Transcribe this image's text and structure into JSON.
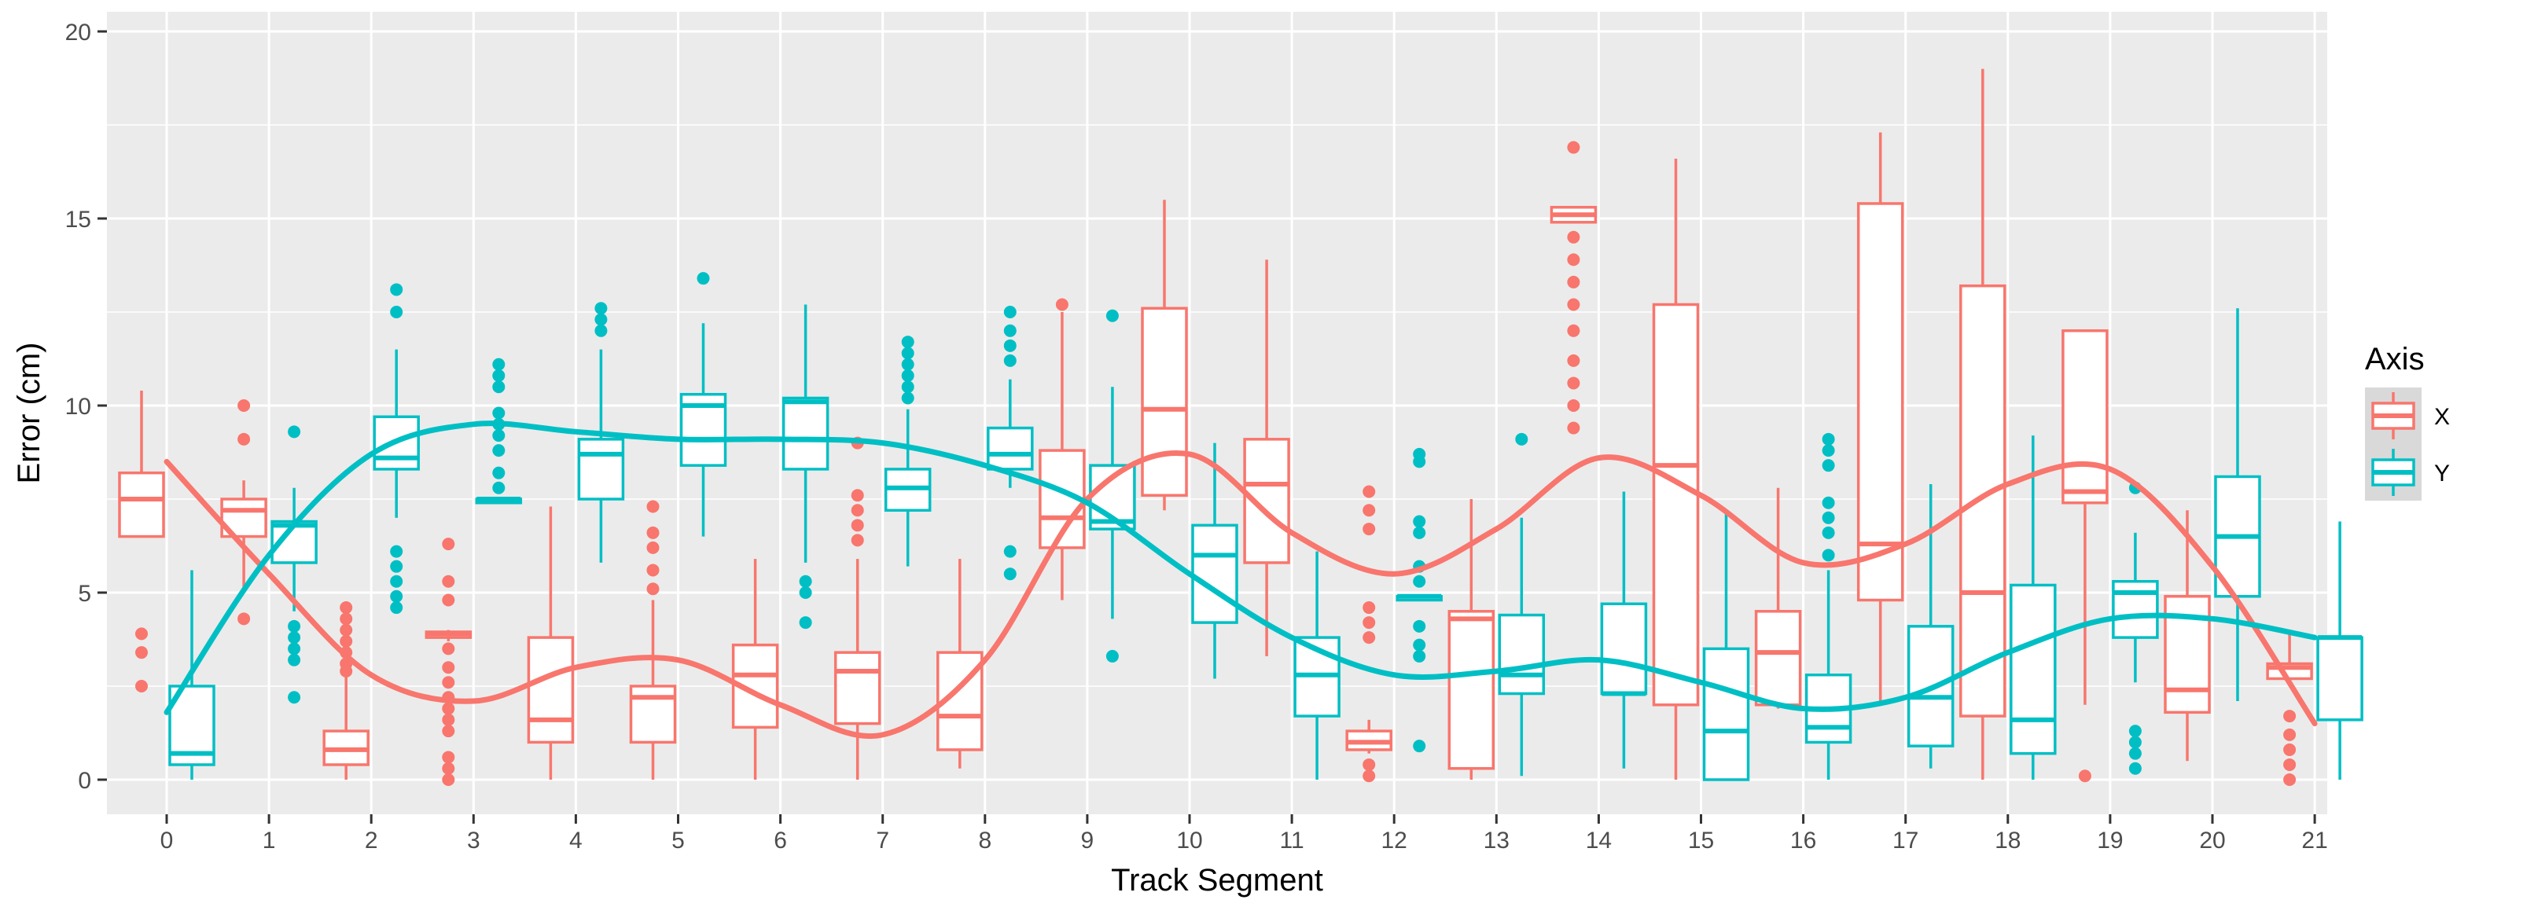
{
  "chart_data": {
    "type": "boxplot",
    "xlabel": "Track Segment",
    "ylabel": "Error (cm)",
    "ylim": [
      -1,
      20
    ],
    "yticks": [
      0,
      5,
      10,
      15,
      20
    ],
    "categories": [
      "0",
      "1",
      "2",
      "3",
      "4",
      "5",
      "6",
      "7",
      "8",
      "9",
      "10",
      "11",
      "12",
      "13",
      "14",
      "15",
      "16",
      "17",
      "18",
      "19",
      "20",
      "21"
    ],
    "grid": true,
    "legend": {
      "title": "Axis",
      "position": "right",
      "entries": [
        "X",
        "Y"
      ]
    },
    "series": [
      {
        "name": "X",
        "color": "#F8766D",
        "boxes": [
          {
            "x": 0,
            "min": 6.5,
            "q1": 6.5,
            "median": 7.5,
            "q3": 8.2,
            "max": 10.4,
            "outliers": [
              3.9,
              3.4,
              2.5
            ]
          },
          {
            "x": 1,
            "min": 5.0,
            "q1": 6.5,
            "median": 7.2,
            "q3": 7.5,
            "max": 8.0,
            "outliers": [
              10.0,
              9.1,
              4.3
            ]
          },
          {
            "x": 2,
            "min": 0.0,
            "q1": 0.4,
            "median": 0.8,
            "q3": 1.3,
            "max": 2.8,
            "outliers": [
              4.6,
              4.3,
              4.0,
              3.7,
              3.4,
              3.1,
              2.9
            ]
          },
          {
            "x": 3,
            "min": 3.7,
            "q1": 3.8,
            "median": 3.9,
            "q3": 3.95,
            "max": 4.0,
            "outliers": [
              6.3,
              5.3,
              4.8,
              3.5,
              3.0,
              2.6,
              2.2,
              1.9,
              1.6,
              1.3,
              0.6,
              0.3,
              0.0
            ]
          },
          {
            "x": 4,
            "min": 0.0,
            "q1": 1.0,
            "median": 1.6,
            "q3": 3.8,
            "max": 7.3,
            "outliers": []
          },
          {
            "x": 5,
            "min": 0.0,
            "q1": 1.0,
            "median": 2.2,
            "q3": 2.5,
            "max": 4.8,
            "outliers": [
              7.3,
              6.6,
              6.2,
              5.6,
              5.1
            ]
          },
          {
            "x": 6,
            "min": 0.0,
            "q1": 1.4,
            "median": 2.8,
            "q3": 3.6,
            "max": 5.9,
            "outliers": []
          },
          {
            "x": 7,
            "min": 0.0,
            "q1": 1.5,
            "median": 2.9,
            "q3": 3.4,
            "max": 5.9,
            "outliers": [
              9.0,
              7.6,
              7.2,
              6.8,
              6.4
            ]
          },
          {
            "x": 8,
            "min": 0.3,
            "q1": 0.8,
            "median": 1.7,
            "q3": 3.4,
            "max": 5.9,
            "outliers": []
          },
          {
            "x": 9,
            "min": 4.8,
            "q1": 6.2,
            "median": 7.0,
            "q3": 8.8,
            "max": 12.5,
            "outliers": [
              12.7
            ]
          },
          {
            "x": 10,
            "min": 7.2,
            "q1": 7.6,
            "median": 9.9,
            "q3": 12.6,
            "max": 15.5,
            "outliers": []
          },
          {
            "x": 11,
            "min": 3.3,
            "q1": 5.8,
            "median": 7.9,
            "q3": 9.1,
            "max": 13.9,
            "outliers": []
          },
          {
            "x": 12,
            "min": 0.7,
            "q1": 0.8,
            "median": 1.0,
            "q3": 1.3,
            "max": 1.6,
            "outliers": [
              7.7,
              7.2,
              6.7,
              4.6,
              4.2,
              3.8,
              0.4,
              0.1
            ]
          },
          {
            "x": 13,
            "min": 0.0,
            "q1": 0.3,
            "median": 4.3,
            "q3": 4.5,
            "max": 7.5,
            "outliers": []
          },
          {
            "x": 14,
            "min": 14.9,
            "q1": 14.9,
            "median": 15.1,
            "q3": 15.3,
            "max": 15.3,
            "outliers": [
              16.9,
              14.5,
              13.9,
              13.3,
              12.7,
              12.0,
              11.2,
              10.6,
              10.0,
              9.4
            ]
          },
          {
            "x": 15,
            "min": 0.0,
            "q1": 2.0,
            "median": 8.4,
            "q3": 12.7,
            "max": 16.6,
            "outliers": []
          },
          {
            "x": 16,
            "min": 1.9,
            "q1": 2.0,
            "median": 3.4,
            "q3": 4.5,
            "max": 7.8,
            "outliers": []
          },
          {
            "x": 17,
            "min": 2.0,
            "q1": 4.8,
            "median": 6.3,
            "q3": 15.4,
            "max": 17.3,
            "outliers": []
          },
          {
            "x": 18,
            "min": 0.0,
            "q1": 1.7,
            "median": 5.0,
            "q3": 13.2,
            "max": 19.0,
            "outliers": []
          },
          {
            "x": 19,
            "min": 2.0,
            "q1": 7.4,
            "median": 7.7,
            "q3": 12.0,
            "max": 12.0,
            "outliers": [
              0.1
            ]
          },
          {
            "x": 20,
            "min": 0.5,
            "q1": 1.8,
            "median": 2.4,
            "q3": 4.9,
            "max": 7.2,
            "outliers": []
          },
          {
            "x": 21,
            "min": 2.5,
            "q1": 2.7,
            "median": 3.0,
            "q3": 3.1,
            "max": 4.0,
            "outliers": [
              1.7,
              1.2,
              0.8,
              0.4,
              0.0
            ]
          }
        ],
        "trend": [
          [
            0,
            8.5
          ],
          [
            1,
            5.5
          ],
          [
            2,
            2.8
          ],
          [
            3,
            2.1
          ],
          [
            4,
            3.0
          ],
          [
            5,
            3.2
          ],
          [
            6,
            2.0
          ],
          [
            7,
            1.2
          ],
          [
            8,
            3.2
          ],
          [
            9,
            7.5
          ],
          [
            10,
            8.7
          ],
          [
            11,
            6.6
          ],
          [
            12,
            5.5
          ],
          [
            13,
            6.7
          ],
          [
            14,
            8.6
          ],
          [
            15,
            7.6
          ],
          [
            16,
            5.8
          ],
          [
            17,
            6.3
          ],
          [
            18,
            7.9
          ],
          [
            19,
            8.3
          ],
          [
            20,
            5.7
          ],
          [
            21,
            1.5
          ]
        ]
      },
      {
        "name": "Y",
        "color": "#00BFC4",
        "boxes": [
          {
            "x": 0,
            "min": 0.0,
            "q1": 0.4,
            "median": 0.7,
            "q3": 2.5,
            "max": 5.6,
            "outliers": []
          },
          {
            "x": 1,
            "min": 4.5,
            "q1": 5.8,
            "median": 6.8,
            "q3": 6.9,
            "max": 7.8,
            "outliers": [
              9.3,
              4.1,
              3.8,
              3.5,
              3.2,
              2.2
            ]
          },
          {
            "x": 2,
            "min": 7.0,
            "q1": 8.3,
            "median": 8.6,
            "q3": 9.7,
            "max": 11.5,
            "outliers": [
              13.1,
              12.5,
              6.1,
              5.7,
              5.3,
              4.9,
              4.6
            ]
          },
          {
            "x": 3,
            "min": 7.4,
            "q1": 7.4,
            "median": 7.5,
            "q3": 7.5,
            "max": 7.5,
            "outliers": [
              11.1,
              10.8,
              10.5,
              9.8,
              9.5,
              9.2,
              8.8,
              8.2,
              7.8
            ]
          },
          {
            "x": 4,
            "min": 5.8,
            "q1": 7.5,
            "median": 8.7,
            "q3": 9.1,
            "max": 11.5,
            "outliers": [
              12.6,
              12.3,
              12.0
            ]
          },
          {
            "x": 5,
            "min": 6.5,
            "q1": 8.4,
            "median": 10.0,
            "q3": 10.3,
            "max": 12.2,
            "outliers": [
              13.4
            ]
          },
          {
            "x": 6,
            "min": 5.8,
            "q1": 8.3,
            "median": 10.1,
            "q3": 10.2,
            "max": 12.7,
            "outliers": [
              5.3,
              5.0,
              4.2
            ]
          },
          {
            "x": 7,
            "min": 5.7,
            "q1": 7.2,
            "median": 7.8,
            "q3": 8.3,
            "max": 9.9,
            "outliers": [
              11.7,
              11.4,
              11.1,
              10.8,
              10.5,
              10.2
            ]
          },
          {
            "x": 8,
            "min": 7.8,
            "q1": 8.3,
            "median": 8.7,
            "q3": 9.4,
            "max": 10.7,
            "outliers": [
              12.5,
              12.0,
              11.6,
              11.2,
              6.1,
              5.5
            ]
          },
          {
            "x": 9,
            "min": 4.3,
            "q1": 6.7,
            "median": 6.9,
            "q3": 8.4,
            "max": 10.5,
            "outliers": [
              12.4,
              3.3
            ]
          },
          {
            "x": 10,
            "min": 2.7,
            "q1": 4.2,
            "median": 6.0,
            "q3": 6.8,
            "max": 9.0,
            "outliers": []
          },
          {
            "x": 11,
            "min": 0.0,
            "q1": 1.7,
            "median": 2.8,
            "q3": 3.8,
            "max": 6.1,
            "outliers": []
          },
          {
            "x": 12,
            "min": 4.8,
            "q1": 4.8,
            "median": 4.9,
            "q3": 4.9,
            "max": 4.9,
            "outliers": [
              8.7,
              8.5,
              6.9,
              6.6,
              5.7,
              5.3,
              4.1,
              3.6,
              3.3,
              0.9
            ]
          },
          {
            "x": 13,
            "min": 0.1,
            "q1": 2.3,
            "median": 2.8,
            "q3": 4.4,
            "max": 7.0,
            "outliers": [
              9.1
            ]
          },
          {
            "x": 14,
            "min": 0.3,
            "q1": 2.3,
            "median": 2.3,
            "q3": 4.7,
            "max": 7.7,
            "outliers": []
          },
          {
            "x": 15,
            "min": 0.0,
            "q1": 0.0,
            "median": 1.3,
            "q3": 3.5,
            "max": 7.2,
            "outliers": []
          },
          {
            "x": 16,
            "min": 0.0,
            "q1": 1.0,
            "median": 1.4,
            "q3": 2.8,
            "max": 5.6,
            "outliers": [
              9.1,
              8.8,
              8.4,
              7.4,
              7.0,
              6.6,
              6.0
            ]
          },
          {
            "x": 17,
            "min": 0.3,
            "q1": 0.9,
            "median": 2.2,
            "q3": 4.1,
            "max": 7.9,
            "outliers": []
          },
          {
            "x": 18,
            "min": 0.0,
            "q1": 0.7,
            "median": 1.6,
            "q3": 5.2,
            "max": 9.2,
            "outliers": []
          },
          {
            "x": 19,
            "min": 2.6,
            "q1": 3.8,
            "median": 5.0,
            "q3": 5.3,
            "max": 6.6,
            "outliers": [
              7.8,
              1.3,
              1.0,
              0.7,
              0.3
            ]
          },
          {
            "x": 20,
            "min": 2.1,
            "q1": 4.9,
            "median": 6.5,
            "q3": 8.1,
            "max": 12.6,
            "outliers": []
          },
          {
            "x": 21,
            "min": 0.0,
            "q1": 1.6,
            "median": 3.8,
            "q3": 3.8,
            "max": 6.9,
            "outliers": []
          }
        ],
        "trend": [
          [
            0,
            1.8
          ],
          [
            1,
            6.0
          ],
          [
            2,
            8.7
          ],
          [
            3,
            9.5
          ],
          [
            4,
            9.3
          ],
          [
            5,
            9.1
          ],
          [
            6,
            9.1
          ],
          [
            7,
            9.0
          ],
          [
            8,
            8.4
          ],
          [
            9,
            7.4
          ],
          [
            10,
            5.5
          ],
          [
            11,
            3.8
          ],
          [
            12,
            2.8
          ],
          [
            13,
            2.9
          ],
          [
            14,
            3.2
          ],
          [
            15,
            2.6
          ],
          [
            16,
            1.9
          ],
          [
            17,
            2.2
          ],
          [
            18,
            3.4
          ],
          [
            19,
            4.3
          ],
          [
            20,
            4.3
          ],
          [
            21,
            3.8
          ]
        ]
      }
    ]
  }
}
